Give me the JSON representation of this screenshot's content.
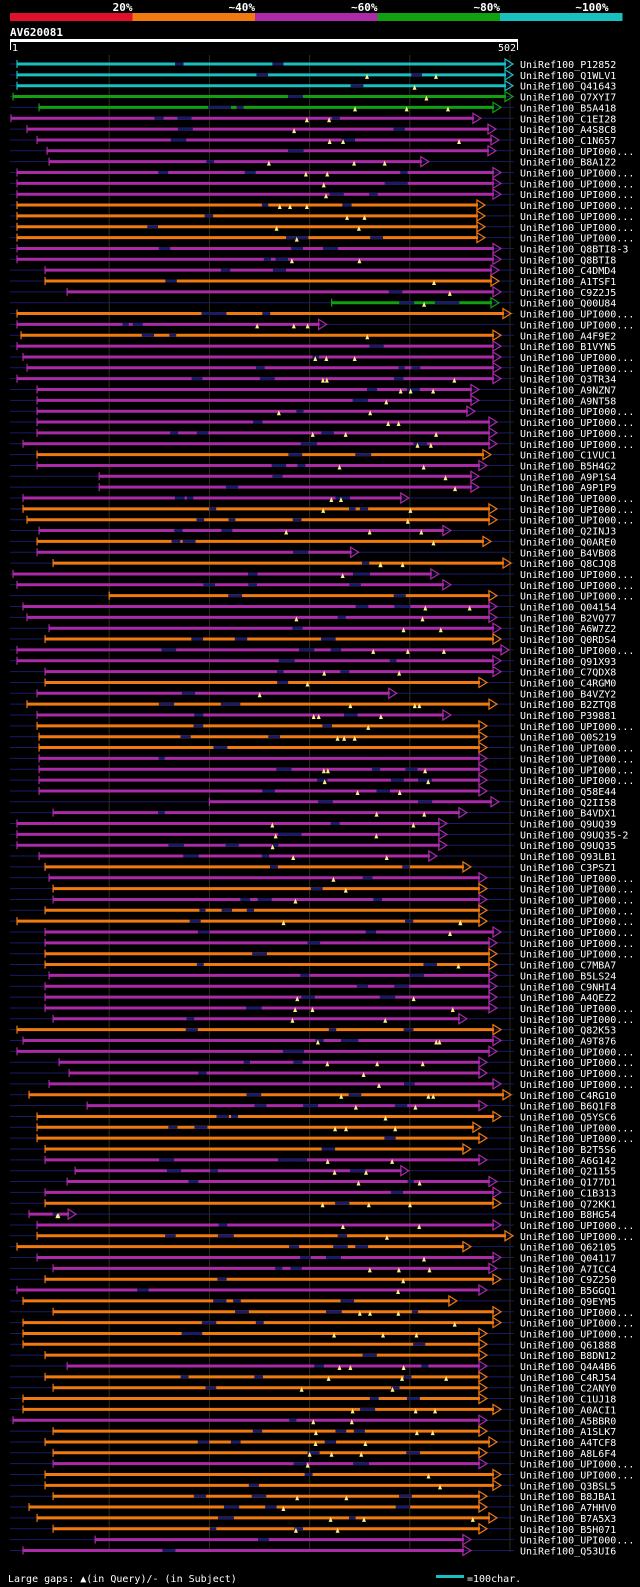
{
  "query": {
    "id": "AV620081",
    "start_label": "1",
    "end_label": "502",
    "length": 502
  },
  "colors": {
    "background": "#000000",
    "line": "#1a1a66",
    "gap": "#ffee88",
    "tiers": [
      "#e0102a",
      "#f07a10",
      "#aa2aa8",
      "#10a010",
      "#18c0c0"
    ]
  },
  "legend": {
    "identity_labels": [
      "20%",
      "~40%",
      "~60%",
      "~80%",
      "~100%"
    ],
    "gaps_text": "Large gaps: ▲(in Query)/- (in Subject)",
    "scale_text": "=100char."
  },
  "chart_data": {
    "type": "alignment_overview",
    "xlim": [
      1,
      502
    ],
    "rows": [
      {
        "name": "UniRef100_P12852",
        "start": 8,
        "end": 502,
        "tier": 4
      },
      {
        "name": "UniRef100_Q1WLV1",
        "start": 8,
        "end": 502,
        "tier": 4
      },
      {
        "name": "UniRef100_Q41643",
        "start": 8,
        "end": 502,
        "tier": 4
      },
      {
        "name": "UniRef100_Q7XYI7",
        "start": 4,
        "end": 502,
        "tier": 3
      },
      {
        "name": "UniRef100_B5A418",
        "start": 30,
        "end": 490,
        "tier": 3
      },
      {
        "name": "UniRef100_C1EI28",
        "start": 2,
        "end": 470,
        "tier": 2
      },
      {
        "name": "UniRef100_A4S8C8",
        "start": 18,
        "end": 485,
        "tier": 2
      },
      {
        "name": "UniRef100_C1N657",
        "start": 28,
        "end": 488,
        "tier": 2
      },
      {
        "name": "UniRef100_UPI000...",
        "start": 38,
        "end": 485,
        "tier": 2
      },
      {
        "name": "UniRef100_B8A1Z2",
        "start": 40,
        "end": 418,
        "tier": 2
      },
      {
        "name": "UniRef100_UPI000...",
        "start": 8,
        "end": 490,
        "tier": 2
      },
      {
        "name": "UniRef100_UPI000...",
        "start": 8,
        "end": 490,
        "tier": 2
      },
      {
        "name": "UniRef100_UPI000...",
        "start": 8,
        "end": 490,
        "tier": 2
      },
      {
        "name": "UniRef100_UPI000...",
        "start": 8,
        "end": 474,
        "tier": 1
      },
      {
        "name": "UniRef100_UPI000...",
        "start": 8,
        "end": 474,
        "tier": 1
      },
      {
        "name": "UniRef100_UPI000...",
        "start": 8,
        "end": 474,
        "tier": 1
      },
      {
        "name": "UniRef100_UPI000...",
        "start": 8,
        "end": 474,
        "tier": 1
      },
      {
        "name": "UniRef100_Q8BTI8-3",
        "start": 8,
        "end": 490,
        "tier": 2
      },
      {
        "name": "UniRef100_Q8BTI8",
        "start": 8,
        "end": 490,
        "tier": 2
      },
      {
        "name": "UniRef100_C4DMD4",
        "start": 36,
        "end": 488,
        "tier": 2
      },
      {
        "name": "UniRef100_A1TSF1",
        "start": 36,
        "end": 488,
        "tier": 1
      },
      {
        "name": "UniRef100_C9Z2J5",
        "start": 58,
        "end": 490,
        "tier": 2
      },
      {
        "name": "UniRef100_Q00U84",
        "start": 322,
        "end": 488,
        "tier": 3
      },
      {
        "name": "UniRef100_UPI000...",
        "start": 8,
        "end": 500,
        "tier": 1
      },
      {
        "name": "UniRef100_UPI000...",
        "start": 8,
        "end": 316,
        "tier": 2
      },
      {
        "name": "UniRef100_A4F9E2",
        "start": 12,
        "end": 490,
        "tier": 1
      },
      {
        "name": "UniRef100_B1VYN5",
        "start": 8,
        "end": 490,
        "tier": 2
      },
      {
        "name": "UniRef100_UPI000...",
        "start": 14,
        "end": 490,
        "tier": 2
      },
      {
        "name": "UniRef100_UPI000...",
        "start": 18,
        "end": 490,
        "tier": 2
      },
      {
        "name": "UniRef100_Q3TR34",
        "start": 8,
        "end": 490,
        "tier": 2
      },
      {
        "name": "UniRef100_A9NZN7",
        "start": 28,
        "end": 468,
        "tier": 2
      },
      {
        "name": "UniRef100_A9NT58",
        "start": 28,
        "end": 468,
        "tier": 2
      },
      {
        "name": "UniRef100_UPI000...",
        "start": 28,
        "end": 464,
        "tier": 2
      },
      {
        "name": "UniRef100_UPI000...",
        "start": 28,
        "end": 486,
        "tier": 2
      },
      {
        "name": "UniRef100_UPI000...",
        "start": 28,
        "end": 486,
        "tier": 2
      },
      {
        "name": "UniRef100_UPI000...",
        "start": 14,
        "end": 486,
        "tier": 2
      },
      {
        "name": "UniRef100_C1VUC1",
        "start": 28,
        "end": 480,
        "tier": 1
      },
      {
        "name": "UniRef100_B5H4G2",
        "start": 28,
        "end": 476,
        "tier": 2
      },
      {
        "name": "UniRef100_A9P1S4",
        "start": 90,
        "end": 468,
        "tier": 2
      },
      {
        "name": "UniRef100_A9P1P9",
        "start": 90,
        "end": 468,
        "tier": 2
      },
      {
        "name": "UniRef100_UPI000...",
        "start": 14,
        "end": 398,
        "tier": 2
      },
      {
        "name": "UniRef100_UPI000...",
        "start": 14,
        "end": 486,
        "tier": 1
      },
      {
        "name": "UniRef100_UPI000...",
        "start": 18,
        "end": 486,
        "tier": 1
      },
      {
        "name": "UniRef100_Q2INJ3",
        "start": 30,
        "end": 440,
        "tier": 2
      },
      {
        "name": "UniRef100_Q0ARE0",
        "start": 28,
        "end": 480,
        "tier": 1
      },
      {
        "name": "UniRef100_B4VB08",
        "start": 28,
        "end": 348,
        "tier": 2
      },
      {
        "name": "UniRef100_Q8CJQ8",
        "start": 44,
        "end": 500,
        "tier": 1
      },
      {
        "name": "UniRef100_UPI000...",
        "start": 4,
        "end": 428,
        "tier": 2
      },
      {
        "name": "UniRef100_UPI000...",
        "start": 8,
        "end": 440,
        "tier": 2
      },
      {
        "name": "UniRef100_UPI000...",
        "start": 100,
        "end": 486,
        "tier": 1
      },
      {
        "name": "UniRef100_Q04154",
        "start": 14,
        "end": 486,
        "tier": 2
      },
      {
        "name": "UniRef100_B2VQ77",
        "start": 18,
        "end": 486,
        "tier": 2
      },
      {
        "name": "UniRef100_A6W7Z2",
        "start": 40,
        "end": 490,
        "tier": 2
      },
      {
        "name": "UniRef100_Q0RDS4",
        "start": 36,
        "end": 490,
        "tier": 1
      },
      {
        "name": "UniRef100_UPI000...",
        "start": 8,
        "end": 498,
        "tier": 2
      },
      {
        "name": "UniRef100_Q91X93",
        "start": 8,
        "end": 490,
        "tier": 2
      },
      {
        "name": "UniRef100_C7QDX8",
        "start": 36,
        "end": 490,
        "tier": 2
      },
      {
        "name": "UniRef100_C4RGM0",
        "start": 36,
        "end": 476,
        "tier": 1
      },
      {
        "name": "UniRef100_B4VZY2",
        "start": 28,
        "end": 386,
        "tier": 2
      },
      {
        "name": "UniRef100_B2ZTQ8",
        "start": 18,
        "end": 486,
        "tier": 1
      },
      {
        "name": "UniRef100_P39881",
        "start": 28,
        "end": 440,
        "tier": 2
      },
      {
        "name": "UniRef100_UPI000...",
        "start": 28,
        "end": 476,
        "tier": 1
      },
      {
        "name": "UniRef100_Q0S219",
        "start": 30,
        "end": 476,
        "tier": 1
      },
      {
        "name": "UniRef100_UPI000...",
        "start": 30,
        "end": 476,
        "tier": 1
      },
      {
        "name": "UniRef100_UPI000...",
        "start": 30,
        "end": 476,
        "tier": 2
      },
      {
        "name": "UniRef100_UPI000...",
        "start": 30,
        "end": 476,
        "tier": 2
      },
      {
        "name": "UniRef100_UPI000...",
        "start": 30,
        "end": 476,
        "tier": 2
      },
      {
        "name": "UniRef100_Q58E44",
        "start": 30,
        "end": 476,
        "tier": 2
      },
      {
        "name": "UniRef100_Q2II58",
        "start": 200,
        "end": 488,
        "tier": 2
      },
      {
        "name": "UniRef100_B4VDX1",
        "start": 44,
        "end": 456,
        "tier": 2
      },
      {
        "name": "UniRef100_Q9UQ39",
        "start": 8,
        "end": 436,
        "tier": 2
      },
      {
        "name": "UniRef100_Q9UQ35-2",
        "start": 8,
        "end": 436,
        "tier": 2
      },
      {
        "name": "UniRef100_Q9UQ35",
        "start": 8,
        "end": 436,
        "tier": 2
      },
      {
        "name": "UniRef100_Q93LB1",
        "start": 30,
        "end": 426,
        "tier": 2
      },
      {
        "name": "UniRef100_C3PSZ1",
        "start": 36,
        "end": 460,
        "tier": 1
      },
      {
        "name": "UniRef100_UPI000...",
        "start": 40,
        "end": 476,
        "tier": 2
      },
      {
        "name": "UniRef100_UPI000...",
        "start": 44,
        "end": 476,
        "tier": 1
      },
      {
        "name": "UniRef100_UPI000...",
        "start": 44,
        "end": 476,
        "tier": 2
      },
      {
        "name": "UniRef100_UPI000...",
        "start": 36,
        "end": 476,
        "tier": 1
      },
      {
        "name": "UniRef100_UPI000...",
        "start": 8,
        "end": 476,
        "tier": 1
      },
      {
        "name": "UniRef100_UPI000...",
        "start": 36,
        "end": 490,
        "tier": 2
      },
      {
        "name": "UniRef100_UPI000...",
        "start": 36,
        "end": 486,
        "tier": 2
      },
      {
        "name": "UniRef100_UPI000...",
        "start": 36,
        "end": 486,
        "tier": 1
      },
      {
        "name": "UniRef100_C7MBA7",
        "start": 36,
        "end": 486,
        "tier": 1
      },
      {
        "name": "UniRef100_B5LS24",
        "start": 40,
        "end": 486,
        "tier": 2
      },
      {
        "name": "UniRef100_C9NHI4",
        "start": 36,
        "end": 486,
        "tier": 2
      },
      {
        "name": "UniRef100_A4QEZ2",
        "start": 36,
        "end": 486,
        "tier": 2
      },
      {
        "name": "UniRef100_UPI000...",
        "start": 36,
        "end": 486,
        "tier": 2
      },
      {
        "name": "UniRef100_UPI000...",
        "start": 44,
        "end": 456,
        "tier": 2
      },
      {
        "name": "UniRef100_Q82K53",
        "start": 8,
        "end": 490,
        "tier": 1
      },
      {
        "name": "UniRef100_A9T876",
        "start": 14,
        "end": 490,
        "tier": 2
      },
      {
        "name": "UniRef100_UPI000...",
        "start": 8,
        "end": 486,
        "tier": 2
      },
      {
        "name": "UniRef100_UPI000...",
        "start": 50,
        "end": 476,
        "tier": 2
      },
      {
        "name": "UniRef100_UPI000...",
        "start": 60,
        "end": 476,
        "tier": 2
      },
      {
        "name": "UniRef100_UPI000...",
        "start": 40,
        "end": 490,
        "tier": 2
      },
      {
        "name": "UniRef100_C4RG10",
        "start": 20,
        "end": 500,
        "tier": 1
      },
      {
        "name": "UniRef100_B6Q1F8",
        "start": 78,
        "end": 476,
        "tier": 2
      },
      {
        "name": "UniRef100_Q5YSC6",
        "start": 28,
        "end": 490,
        "tier": 1
      },
      {
        "name": "UniRef100_UPI000...",
        "start": 28,
        "end": 470,
        "tier": 1
      },
      {
        "name": "UniRef100_UPI000...",
        "start": 28,
        "end": 476,
        "tier": 1
      },
      {
        "name": "UniRef100_B2T5S6",
        "start": 36,
        "end": 460,
        "tier": 1
      },
      {
        "name": "UniRef100_A6G142",
        "start": 36,
        "end": 476,
        "tier": 2
      },
      {
        "name": "UniRef100_Q21155",
        "start": 66,
        "end": 398,
        "tier": 2
      },
      {
        "name": "UniRef100_Q177D1",
        "start": 58,
        "end": 486,
        "tier": 2
      },
      {
        "name": "UniRef100_C1B313",
        "start": 36,
        "end": 490,
        "tier": 2
      },
      {
        "name": "UniRef100_Q72KK1",
        "start": 36,
        "end": 490,
        "tier": 1
      },
      {
        "name": "UniRef100_B8HG54",
        "start": 20,
        "end": 66,
        "tier": 2
      },
      {
        "name": "UniRef100_UPI000...",
        "start": 28,
        "end": 490,
        "tier": 2
      },
      {
        "name": "UniRef100_UPI000...",
        "start": 28,
        "end": 502,
        "tier": 1
      },
      {
        "name": "UniRef100_Q62105",
        "start": 8,
        "end": 460,
        "tier": 1
      },
      {
        "name": "UniRef100_Q04117",
        "start": 28,
        "end": 490,
        "tier": 2
      },
      {
        "name": "UniRef100_A7ICC4",
        "start": 44,
        "end": 486,
        "tier": 2
      },
      {
        "name": "UniRef100_C9Z250",
        "start": 36,
        "end": 490,
        "tier": 1
      },
      {
        "name": "UniRef100_B5GGQ1",
        "start": 8,
        "end": 476,
        "tier": 2
      },
      {
        "name": "UniRef100_Q9EYM5",
        "start": 14,
        "end": 446,
        "tier": 1
      },
      {
        "name": "UniRef100_UPI000...",
        "start": 44,
        "end": 490,
        "tier": 1
      },
      {
        "name": "UniRef100_UPI000...",
        "start": 14,
        "end": 490,
        "tier": 1
      },
      {
        "name": "UniRef100_UPI000...",
        "start": 14,
        "end": 476,
        "tier": 1
      },
      {
        "name": "UniRef100_Q61888",
        "start": 14,
        "end": 476,
        "tier": 1
      },
      {
        "name": "UniRef100_B8DN12",
        "start": 36,
        "end": 476,
        "tier": 1
      },
      {
        "name": "UniRef100_Q4A4B6",
        "start": 58,
        "end": 476,
        "tier": 2
      },
      {
        "name": "UniRef100_C4RJ54",
        "start": 36,
        "end": 476,
        "tier": 1
      },
      {
        "name": "UniRef100_C2ANY0",
        "start": 44,
        "end": 476,
        "tier": 1
      },
      {
        "name": "UniRef100_C1UJ18",
        "start": 14,
        "end": 476,
        "tier": 1
      },
      {
        "name": "UniRef100_A0ACI1",
        "start": 14,
        "end": 490,
        "tier": 1
      },
      {
        "name": "UniRef100_A5BBR0",
        "start": 4,
        "end": 476,
        "tier": 2
      },
      {
        "name": "UniRef100_A1SLK7",
        "start": 44,
        "end": 476,
        "tier": 1
      },
      {
        "name": "UniRef100_A4TCF8",
        "start": 36,
        "end": 486,
        "tier": 1
      },
      {
        "name": "UniRef100_A8L6F4",
        "start": 44,
        "end": 476,
        "tier": 1
      },
      {
        "name": "UniRef100_UPI000...",
        "start": 44,
        "end": 476,
        "tier": 2
      },
      {
        "name": "UniRef100_UPI000...",
        "start": 36,
        "end": 490,
        "tier": 1
      },
      {
        "name": "UniRef100_Q3BSL5",
        "start": 36,
        "end": 490,
        "tier": 1
      },
      {
        "name": "UniRef100_B8JBA1",
        "start": 44,
        "end": 476,
        "tier": 1
      },
      {
        "name": "UniRef100_A7HHV0",
        "start": 20,
        "end": 476,
        "tier": 1
      },
      {
        "name": "UniRef100_B7A5X3",
        "start": 28,
        "end": 486,
        "tier": 1
      },
      {
        "name": "UniRef100_B5H071",
        "start": 44,
        "end": 476,
        "tier": 1
      },
      {
        "name": "UniRef100_UPI000...",
        "start": 86,
        "end": 460,
        "tier": 2
      },
      {
        "name": "UniRef100_Q53UI6",
        "start": 14,
        "end": 460,
        "tier": 2
      }
    ]
  }
}
